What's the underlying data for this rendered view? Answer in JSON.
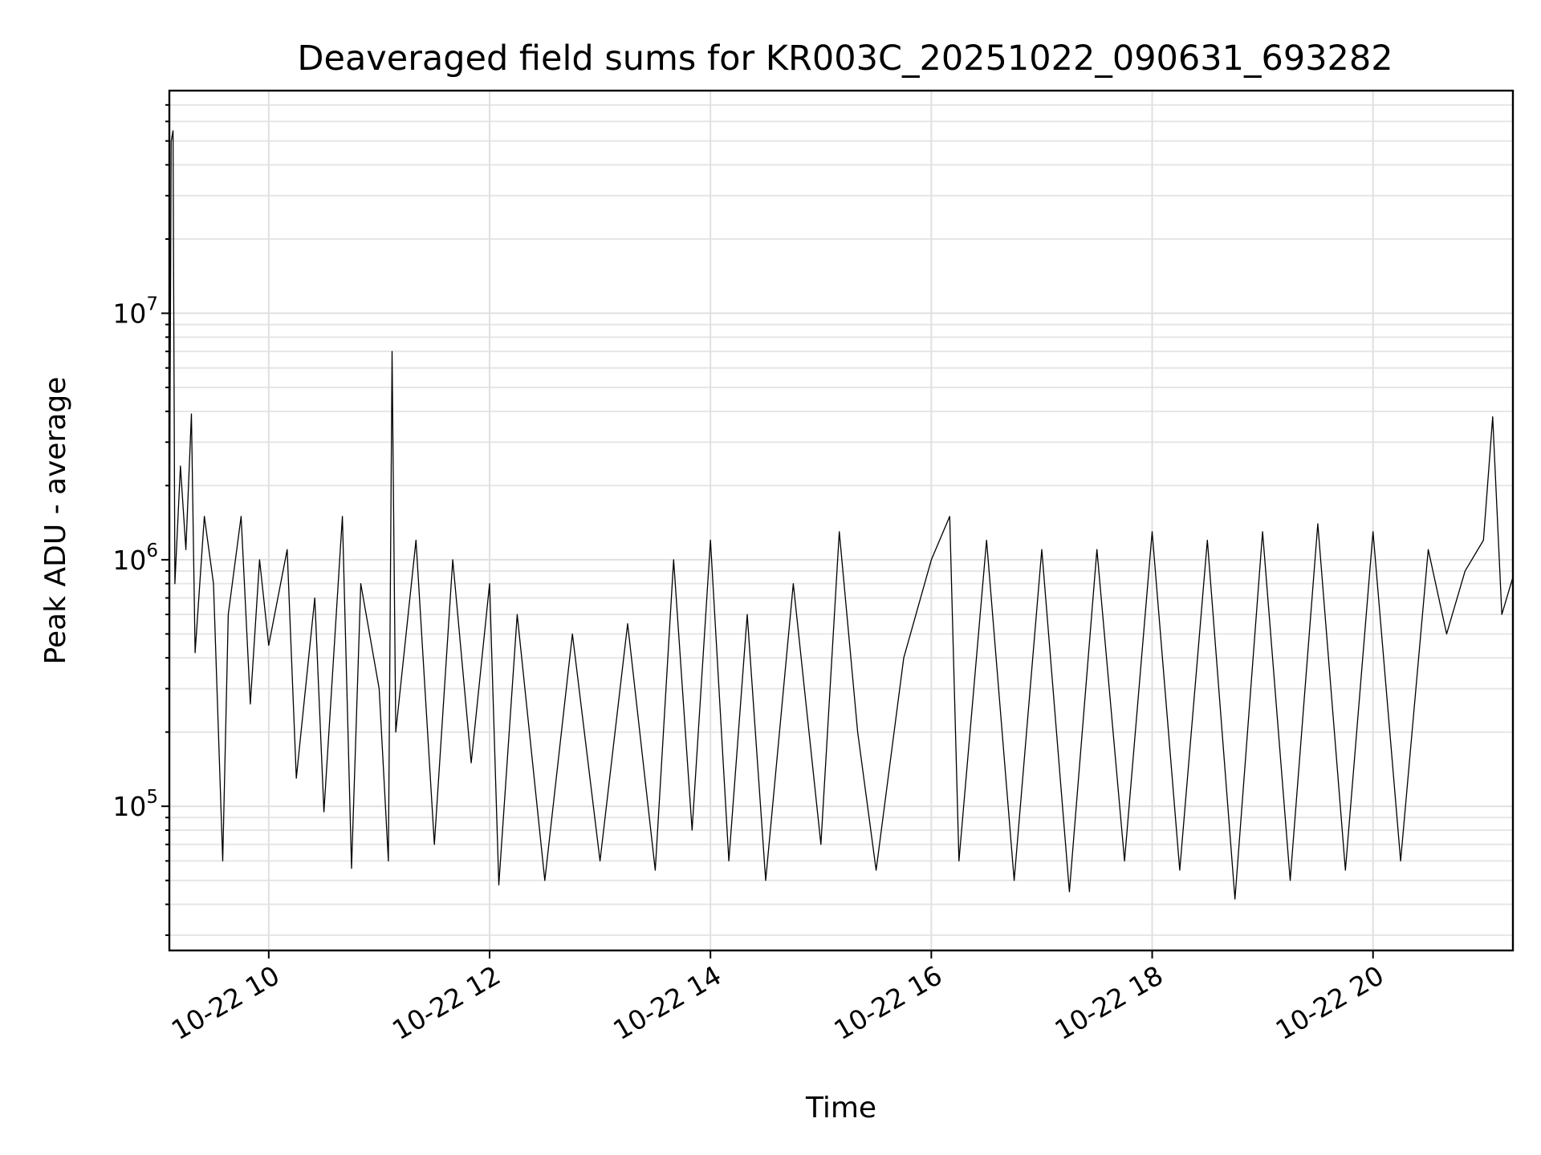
{
  "chart_data": {
    "type": "line",
    "title": "Deaveraged field sums for KR003C_20251022_090631_693282",
    "xlabel": "Time",
    "ylabel": "Peak ADU - average",
    "y_scale": "log",
    "xlim": [
      "10-22 09:06",
      "10-22 21:16"
    ],
    "ylim": [
      26000,
      80000000
    ],
    "x_ticks": [
      {
        "label": "10-22 10",
        "value": "10-22 10:00"
      },
      {
        "label": "10-22 12",
        "value": "10-22 12:00"
      },
      {
        "label": "10-22 14",
        "value": "10-22 14:00"
      },
      {
        "label": "10-22 16",
        "value": "10-22 16:00"
      },
      {
        "label": "10-22 18",
        "value": "10-22 18:00"
      },
      {
        "label": "10-22 20",
        "value": "10-22 20:00"
      }
    ],
    "y_ticks": [
      {
        "base": "10",
        "exp": "5",
        "value": 100000
      },
      {
        "base": "10",
        "exp": "6",
        "value": 1000000
      },
      {
        "base": "10",
        "exp": "7",
        "value": 10000000
      }
    ],
    "grid": true,
    "legend": "none",
    "series": [
      {
        "color": "#000000",
        "points": [
          [
            "10-22 09:06",
            900000
          ],
          [
            "10-22 09:07",
            50000000
          ],
          [
            "10-22 09:08",
            55000000
          ],
          [
            "10-22 09:09",
            800000
          ],
          [
            "10-22 09:12",
            2400000
          ],
          [
            "10-22 09:15",
            1100000
          ],
          [
            "10-22 09:18",
            3900000
          ],
          [
            "10-22 09:20",
            420000
          ],
          [
            "10-22 09:25",
            1500000
          ],
          [
            "10-22 09:30",
            800000
          ],
          [
            "10-22 09:35",
            60000
          ],
          [
            "10-22 09:38",
            600000
          ],
          [
            "10-22 09:45",
            1500000
          ],
          [
            "10-22 09:50",
            260000
          ],
          [
            "10-22 09:55",
            1000000
          ],
          [
            "10-22 10:00",
            450000
          ],
          [
            "10-22 10:10",
            1100000
          ],
          [
            "10-22 10:15",
            130000
          ],
          [
            "10-22 10:25",
            700000
          ],
          [
            "10-22 10:30",
            95000
          ],
          [
            "10-22 10:40",
            1500000
          ],
          [
            "10-22 10:45",
            56000
          ],
          [
            "10-22 10:50",
            800000
          ],
          [
            "10-22 11:00",
            300000
          ],
          [
            "10-22 11:05",
            60000
          ],
          [
            "10-22 11:07",
            7000000
          ],
          [
            "10-22 11:09",
            200000
          ],
          [
            "10-22 11:20",
            1200000
          ],
          [
            "10-22 11:30",
            70000
          ],
          [
            "10-22 11:40",
            1000000
          ],
          [
            "10-22 11:50",
            150000
          ],
          [
            "10-22 12:00",
            800000
          ],
          [
            "10-22 12:05",
            48000
          ],
          [
            "10-22 12:15",
            600000
          ],
          [
            "10-22 12:30",
            50000
          ],
          [
            "10-22 12:45",
            500000
          ],
          [
            "10-22 13:00",
            60000
          ],
          [
            "10-22 13:15",
            550000
          ],
          [
            "10-22 13:30",
            55000
          ],
          [
            "10-22 13:40",
            1000000
          ],
          [
            "10-22 13:50",
            80000
          ],
          [
            "10-22 14:00",
            1200000
          ],
          [
            "10-22 14:10",
            60000
          ],
          [
            "10-22 14:20",
            600000
          ],
          [
            "10-22 14:30",
            50000
          ],
          [
            "10-22 14:45",
            800000
          ],
          [
            "10-22 15:00",
            70000
          ],
          [
            "10-22 15:10",
            1300000
          ],
          [
            "10-22 15:20",
            200000
          ],
          [
            "10-22 15:30",
            55000
          ],
          [
            "10-22 15:45",
            400000
          ],
          [
            "10-22 16:00",
            1000000
          ],
          [
            "10-22 16:10",
            1500000
          ],
          [
            "10-22 16:15",
            60000
          ],
          [
            "10-22 16:30",
            1200000
          ],
          [
            "10-22 16:45",
            50000
          ],
          [
            "10-22 17:00",
            1100000
          ],
          [
            "10-22 17:15",
            45000
          ],
          [
            "10-22 17:30",
            1100000
          ],
          [
            "10-22 17:45",
            60000
          ],
          [
            "10-22 18:00",
            1300000
          ],
          [
            "10-22 18:15",
            55000
          ],
          [
            "10-22 18:30",
            1200000
          ],
          [
            "10-22 18:45",
            42000
          ],
          [
            "10-22 19:00",
            1300000
          ],
          [
            "10-22 19:15",
            50000
          ],
          [
            "10-22 19:30",
            1400000
          ],
          [
            "10-22 19:45",
            55000
          ],
          [
            "10-22 20:00",
            1300000
          ],
          [
            "10-22 20:15",
            60000
          ],
          [
            "10-22 20:30",
            1100000
          ],
          [
            "10-22 20:40",
            500000
          ],
          [
            "10-22 20:50",
            900000
          ],
          [
            "10-22 21:00",
            1200000
          ],
          [
            "10-22 21:05",
            3800000
          ],
          [
            "10-22 21:10",
            600000
          ],
          [
            "10-22 21:16",
            850000
          ]
        ]
      }
    ]
  }
}
